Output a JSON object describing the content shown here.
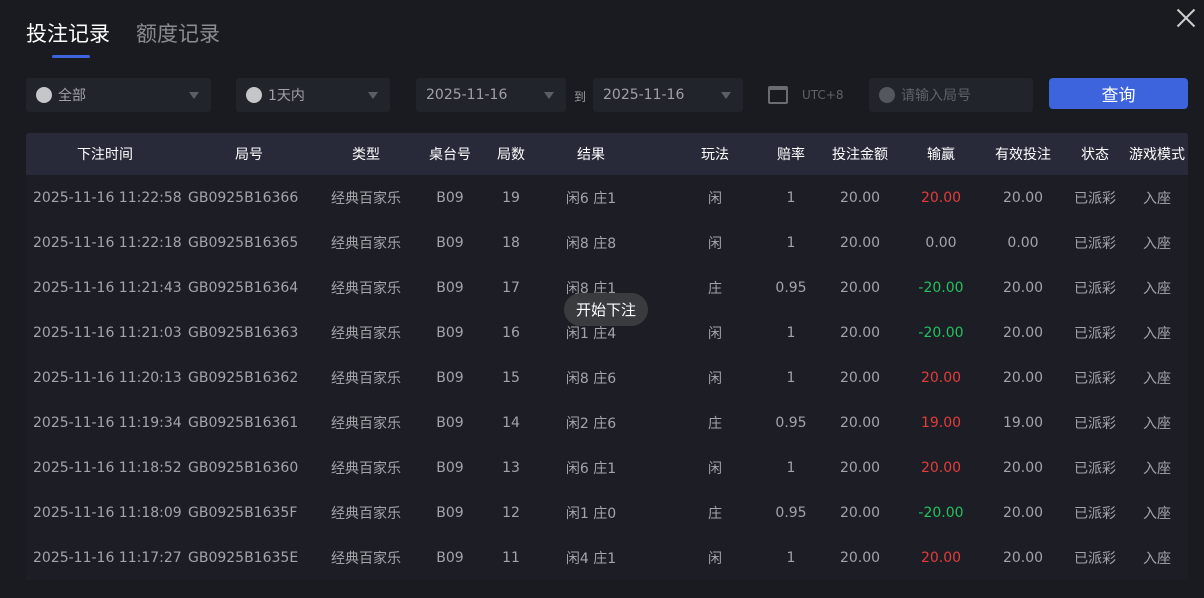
{
  "tabs": [
    {
      "label": "投注记录",
      "active": true
    },
    {
      "label": "额度记录",
      "active": false
    }
  ],
  "filters": {
    "game": "全部",
    "period": "1天内",
    "date_from": "2025-11-16",
    "to_label": "到",
    "date_to": "2025-11-16",
    "timezone": "UTC+8",
    "round_placeholder": "请输入局号",
    "query_label": "查询"
  },
  "columns": [
    "下注时间",
    "局号",
    "类型",
    "桌台号",
    "局数",
    "结果",
    "玩法",
    "赔率",
    "投注金额",
    "输赢",
    "有效投注",
    "状态",
    "游戏模式"
  ],
  "rows": [
    [
      "2025-11-16 11:22:58",
      "GB0925B16366",
      "经典百家乐",
      "B09",
      "19",
      "闲6 庄1",
      "闲",
      "1",
      "20.00",
      "20.00",
      "20.00",
      "已派彩",
      "入座"
    ],
    [
      "2025-11-16 11:22:18",
      "GB0925B16365",
      "经典百家乐",
      "B09",
      "18",
      "闲8 庄8",
      "闲",
      "1",
      "20.00",
      "0.00",
      "0.00",
      "已派彩",
      "入座"
    ],
    [
      "2025-11-16 11:21:43",
      "GB0925B16364",
      "经典百家乐",
      "B09",
      "17",
      "闲8 庄1",
      "庄",
      "0.95",
      "20.00",
      "-20.00",
      "20.00",
      "已派彩",
      "入座"
    ],
    [
      "2025-11-16 11:21:03",
      "GB0925B16363",
      "经典百家乐",
      "B09",
      "16",
      "闲1 庄4",
      "闲",
      "1",
      "20.00",
      "-20.00",
      "20.00",
      "已派彩",
      "入座"
    ],
    [
      "2025-11-16 11:20:13",
      "GB0925B16362",
      "经典百家乐",
      "B09",
      "15",
      "闲8 庄6",
      "闲",
      "1",
      "20.00",
      "20.00",
      "20.00",
      "已派彩",
      "入座"
    ],
    [
      "2025-11-16 11:19:34",
      "GB0925B16361",
      "经典百家乐",
      "B09",
      "14",
      "闲2 庄6",
      "庄",
      "0.95",
      "20.00",
      "19.00",
      "19.00",
      "已派彩",
      "入座"
    ],
    [
      "2025-11-16 11:18:52",
      "GB0925B16360",
      "经典百家乐",
      "B09",
      "13",
      "闲6 庄1",
      "闲",
      "1",
      "20.00",
      "20.00",
      "20.00",
      "已派彩",
      "入座"
    ],
    [
      "2025-11-16 11:18:09",
      "GB0925B1635F",
      "经典百家乐",
      "B09",
      "12",
      "闲1 庄0",
      "庄",
      "0.95",
      "20.00",
      "-20.00",
      "20.00",
      "已派彩",
      "入座"
    ],
    [
      "2025-11-16 11:17:27",
      "GB0925B1635E",
      "经典百家乐",
      "B09",
      "11",
      "闲4 庄1",
      "闲",
      "1",
      "20.00",
      "20.00",
      "20.00",
      "已派彩",
      "入座"
    ]
  ],
  "toast": "开始下注",
  "colors": {
    "accent": "#3d63dd",
    "win": "#e23c3c",
    "loss": "#21c25c"
  }
}
